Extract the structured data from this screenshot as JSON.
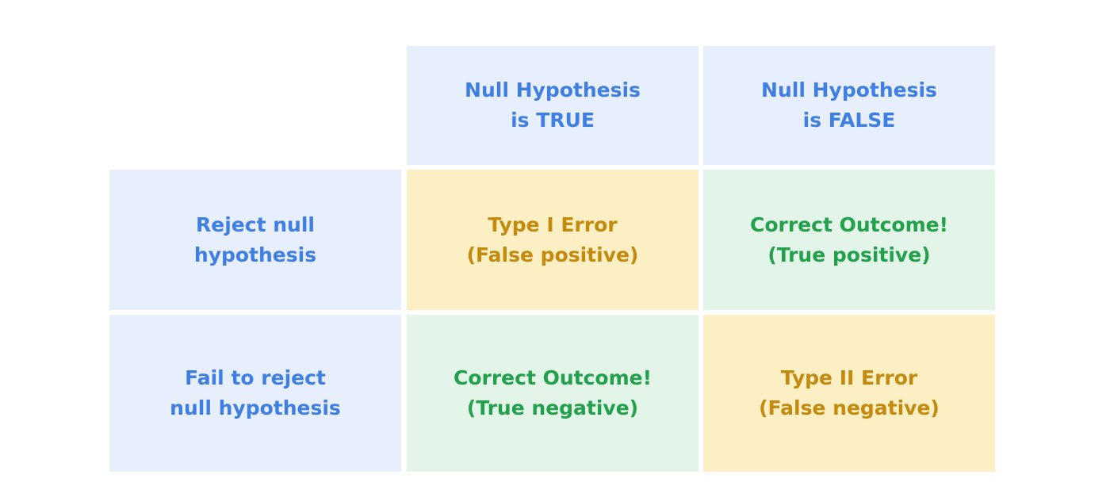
{
  "table": {
    "columns": [
      [
        "Null Hypothesis",
        "is TRUE"
      ],
      [
        "Null Hypothesis",
        "is FALSE"
      ]
    ],
    "rows": [
      {
        "label": [
          "Reject null",
          "hypothesis"
        ],
        "cells": [
          [
            "Type I Error",
            "(False positive)"
          ],
          [
            "Correct Outcome!",
            "(True positive)"
          ]
        ]
      },
      {
        "label": [
          "Fail to reject",
          "null hypothesis"
        ],
        "cells": [
          [
            "Correct Outcome!",
            "(True negative)"
          ],
          [
            "Type II Error",
            "(False negative)"
          ]
        ]
      }
    ]
  }
}
